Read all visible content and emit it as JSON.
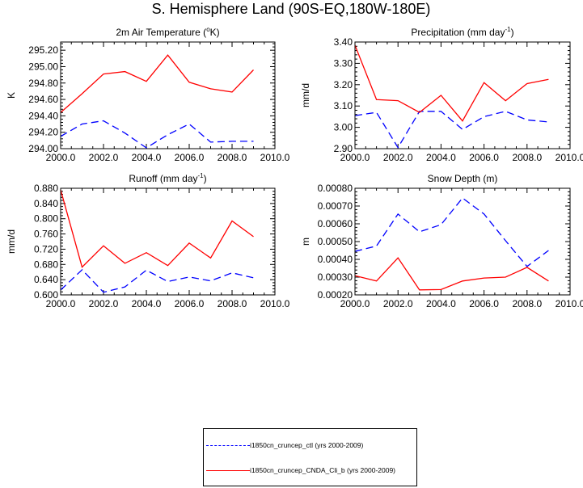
{
  "figure": {
    "title": "S. Hemisphere Land (90S-EQ,180W-180E)"
  },
  "legend": {
    "entries": [
      {
        "label": "i1850cn_cruncep_ctl (yrs 2000-2009)",
        "color": "#0000ff",
        "dash": "dashed"
      },
      {
        "label": "i1850cn_cruncep_CNDA_Cli_b (yrs 2000-2009)",
        "color": "#ff0000",
        "dash": "solid"
      }
    ]
  },
  "chart_data": [
    {
      "type": "line",
      "title_prefix": "2m Air Temperature (",
      "title_sup": "o",
      "title_suffix": "K)",
      "xlabel": "",
      "ylabel": "K",
      "xlim": [
        2000,
        2010
      ],
      "ylim": [
        294.0,
        295.3
      ],
      "xticks": [
        2000,
        2002,
        2004,
        2006,
        2008,
        2010
      ],
      "xtick_labels": [
        "2000.0",
        "2002.0",
        "2004.0",
        "2006.0",
        "2008.0",
        "2010.0"
      ],
      "yticks": [
        294.0,
        294.2,
        294.4,
        294.6,
        294.8,
        295.0,
        295.2
      ],
      "ytick_labels": [
        "294.00",
        "294.20",
        "294.40",
        "294.60",
        "294.80",
        "295.00",
        "295.20"
      ],
      "x": [
        2000,
        2001,
        2002,
        2003,
        2004,
        2005,
        2006,
        2007,
        2008,
        2009
      ],
      "series": [
        {
          "color": "#0000ff",
          "dash": "dashed",
          "values": [
            294.15,
            294.3,
            294.34,
            294.19,
            294.01,
            294.17,
            294.3,
            294.08,
            294.09,
            294.09
          ]
        },
        {
          "color": "#ff0000",
          "dash": "solid",
          "values": [
            294.44,
            294.67,
            294.91,
            294.94,
            294.82,
            295.14,
            294.81,
            294.73,
            294.69,
            294.96
          ]
        }
      ]
    },
    {
      "type": "line",
      "title_prefix": "Precipitation (mm day",
      "title_sup": "-1",
      "title_suffix": ")",
      "xlabel": "",
      "ylabel": "mm/d",
      "xlim": [
        2000,
        2010
      ],
      "ylim": [
        2.9,
        3.4
      ],
      "xticks": [
        2000,
        2002,
        2004,
        2006,
        2008,
        2010
      ],
      "xtick_labels": [
        "2000.0",
        "2002.0",
        "2004.0",
        "2006.0",
        "2008.0",
        "2010.0"
      ],
      "yticks": [
        2.9,
        3.0,
        3.1,
        3.2,
        3.3,
        3.4
      ],
      "ytick_labels": [
        "2.90",
        "3.00",
        "3.10",
        "3.20",
        "3.30",
        "3.40"
      ],
      "x": [
        2000,
        2001,
        2002,
        2003,
        2004,
        2005,
        2006,
        2007,
        2008,
        2009
      ],
      "series": [
        {
          "color": "#0000ff",
          "dash": "dashed",
          "values": [
            3.055,
            3.07,
            2.905,
            3.075,
            3.075,
            2.99,
            3.05,
            3.075,
            3.035,
            3.025
          ]
        },
        {
          "color": "#ff0000",
          "dash": "solid",
          "values": [
            3.385,
            3.13,
            3.125,
            3.07,
            3.15,
            3.03,
            3.21,
            3.125,
            3.205,
            3.225
          ]
        }
      ]
    },
    {
      "type": "line",
      "title_prefix": "Runoff (mm day",
      "title_sup": "-1",
      "title_suffix": ")",
      "xlabel": "",
      "ylabel": "mm/d",
      "xlim": [
        2000,
        2010
      ],
      "ylim": [
        0.6,
        0.88
      ],
      "xticks": [
        2000,
        2002,
        2004,
        2006,
        2008,
        2010
      ],
      "xtick_labels": [
        "2000.0",
        "2002.0",
        "2004.0",
        "2006.0",
        "2008.0",
        "2010.0"
      ],
      "yticks": [
        0.6,
        0.64,
        0.68,
        0.72,
        0.76,
        0.8,
        0.84,
        0.88
      ],
      "ytick_labels": [
        "0.600",
        "0.640",
        "0.680",
        "0.720",
        "0.760",
        "0.800",
        "0.840",
        "0.880"
      ],
      "x": [
        2000,
        2001,
        2002,
        2003,
        2004,
        2005,
        2006,
        2007,
        2008,
        2009
      ],
      "series": [
        {
          "color": "#0000ff",
          "dash": "dashed",
          "values": [
            0.613,
            0.666,
            0.607,
            0.621,
            0.665,
            0.635,
            0.647,
            0.637,
            0.658,
            0.645
          ]
        },
        {
          "color": "#ff0000",
          "dash": "solid",
          "values": [
            0.876,
            0.673,
            0.729,
            0.683,
            0.711,
            0.677,
            0.736,
            0.697,
            0.794,
            0.753
          ]
        }
      ]
    },
    {
      "type": "line",
      "title_prefix": "Snow Depth (m)",
      "title_sup": "",
      "title_suffix": "",
      "xlabel": "",
      "ylabel": "m",
      "xlim": [
        2000,
        2010
      ],
      "ylim": [
        0.0002,
        0.0008
      ],
      "xticks": [
        2000,
        2002,
        2004,
        2006,
        2008,
        2010
      ],
      "xtick_labels": [
        "2000.0",
        "2002.0",
        "2004.0",
        "2006.0",
        "2008.0",
        "2010.0"
      ],
      "yticks": [
        0.0002,
        0.0003,
        0.0004,
        0.0005,
        0.0006,
        0.0007,
        0.0008
      ],
      "ytick_labels": [
        "0.00020",
        "0.00030",
        "0.00040",
        "0.00050",
        "0.00060",
        "0.00070",
        "0.00080"
      ],
      "x": [
        2000,
        2001,
        2002,
        2003,
        2004,
        2005,
        2006,
        2007,
        2008,
        2009
      ],
      "series": [
        {
          "color": "#0000ff",
          "dash": "dashed",
          "values": [
            0.000445,
            0.000475,
            0.000655,
            0.000555,
            0.000595,
            0.000745,
            0.000655,
            0.000505,
            0.00036,
            0.00045
          ]
        },
        {
          "color": "#ff0000",
          "dash": "solid",
          "values": [
            0.000308,
            0.000278,
            0.000408,
            0.000228,
            0.00023,
            0.000278,
            0.000295,
            0.0003,
            0.000355,
            0.000278
          ]
        }
      ]
    }
  ]
}
